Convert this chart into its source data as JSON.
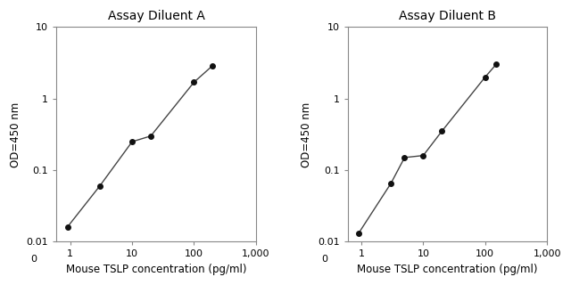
{
  "panel_A": {
    "title": "Assay Diluent A",
    "x": [
      0.9,
      3,
      10,
      20,
      100,
      200
    ],
    "y": [
      0.016,
      0.06,
      0.25,
      0.3,
      1.7,
      2.9
    ]
  },
  "panel_B": {
    "title": "Assay Diluent B",
    "x": [
      0.9,
      3,
      5,
      10,
      20,
      100,
      150
    ],
    "y": [
      0.013,
      0.065,
      0.15,
      0.16,
      0.35,
      2.0,
      3.0
    ]
  },
  "xlabel": "Mouse TSLP concentration (pg/ml)",
  "ylabel": "OD=450 nm",
  "xlim": [
    0.6,
    1000
  ],
  "ylim": [
    0.01,
    10
  ],
  "line_color": "#444444",
  "marker_color": "#111111",
  "marker_size": 4,
  "line_width": 1.0,
  "title_fontsize": 10,
  "label_fontsize": 8.5,
  "tick_fontsize": 8,
  "background_color": "#ffffff",
  "axes_color": "#888888"
}
